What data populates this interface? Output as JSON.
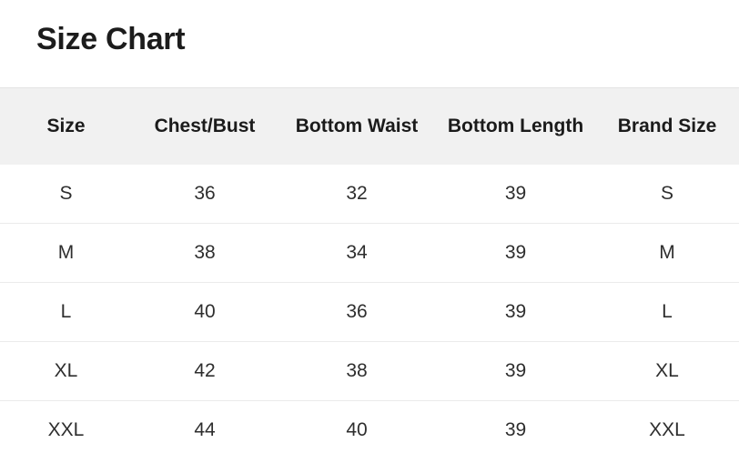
{
  "page": {
    "title": "Size Chart"
  },
  "table": {
    "columns": [
      "Size",
      "Chest/Bust",
      "Bottom Waist",
      "Bottom Length",
      "Brand Size"
    ],
    "rows": [
      [
        "S",
        "36",
        "32",
        "39",
        "S"
      ],
      [
        "M",
        "38",
        "34",
        "39",
        "M"
      ],
      [
        "L",
        "40",
        "36",
        "39",
        "L"
      ],
      [
        "XL",
        "42",
        "38",
        "39",
        "XL"
      ],
      [
        "XXL",
        "44",
        "40",
        "39",
        "XXL"
      ]
    ]
  },
  "colors": {
    "header_background": "#f1f1f1",
    "header_top_border": "#e4e4e4",
    "row_divider": "#ebebeb",
    "title_text": "#1c1c1c",
    "header_text": "#1b1b1b",
    "cell_text": "#2e2e2e"
  }
}
